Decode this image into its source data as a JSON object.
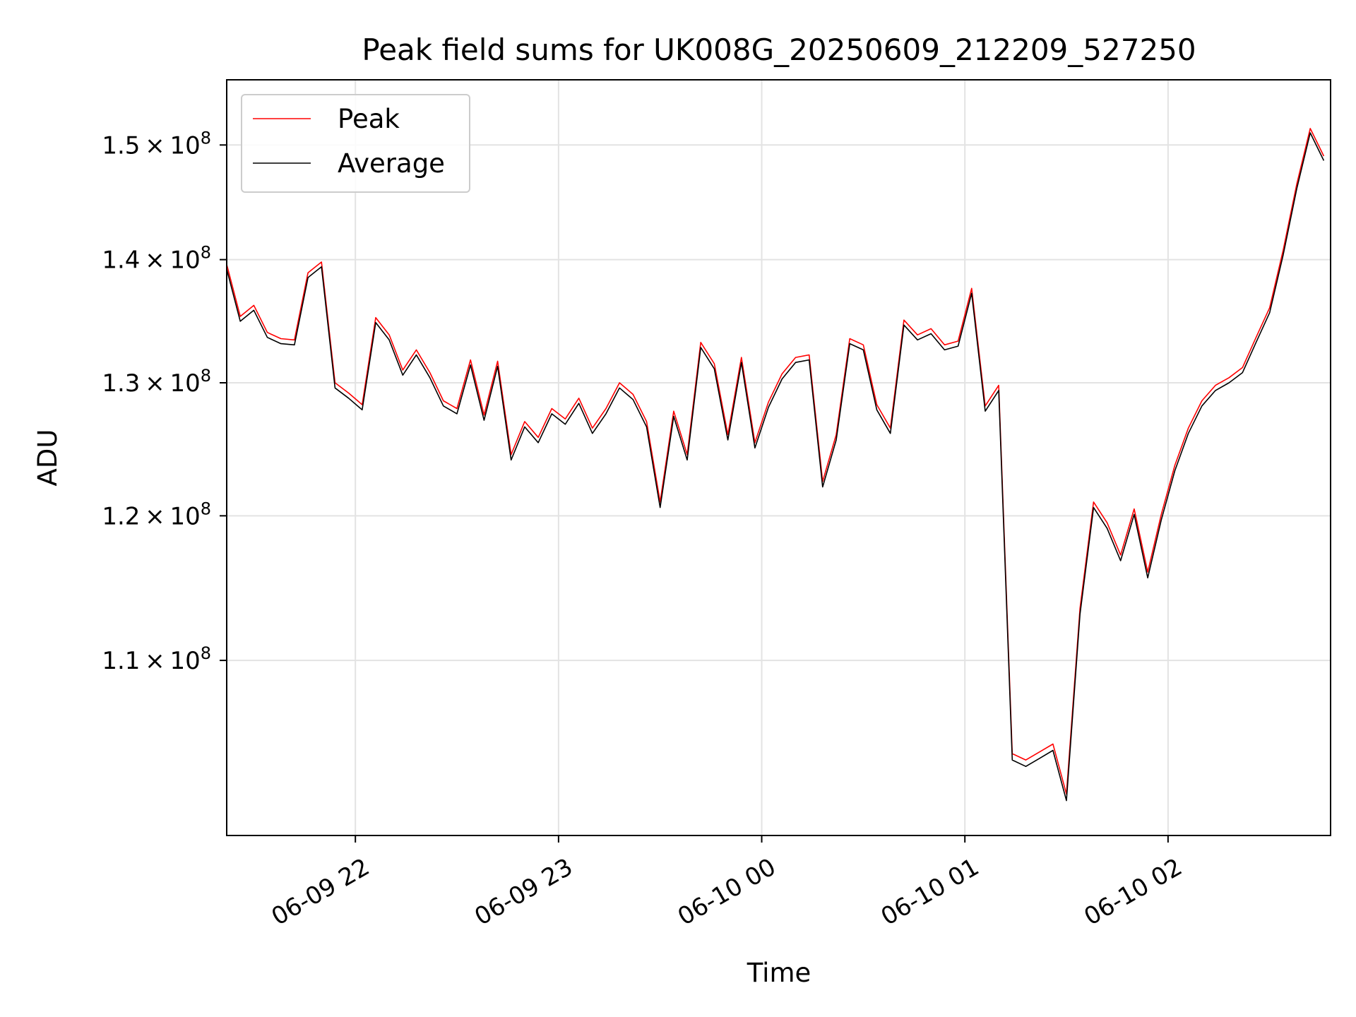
{
  "chart_data": {
    "type": "line",
    "title": "Peak field sums for UK008G_20250609_212209_527250",
    "xlabel": "Time",
    "ylabel": "ADU",
    "yscale": "log",
    "ylim": [
      99000000,
      156000000
    ],
    "xlim": [
      "2025-06-09 21:22",
      "2025-06-10 02:48"
    ],
    "grid": true,
    "legend_position": "upper left",
    "x_ticks": [
      {
        "x": "2025-06-09 22:00",
        "label": "06-09 22"
      },
      {
        "x": "2025-06-09 23:00",
        "label": "06-09 23"
      },
      {
        "x": "2025-06-10 00:00",
        "label": "06-10 00"
      },
      {
        "x": "2025-06-10 01:00",
        "label": "06-10 01"
      },
      {
        "x": "2025-06-10 02:00",
        "label": "06-10 02"
      }
    ],
    "y_ticks": [
      {
        "value": 110000000,
        "mantissa": "1.1",
        "exponent": "8"
      },
      {
        "value": 120000000,
        "mantissa": "1.2",
        "exponent": "8"
      },
      {
        "value": 130000000,
        "mantissa": "1.3",
        "exponent": "8"
      },
      {
        "value": 140000000,
        "mantissa": "1.4",
        "exponent": "8"
      },
      {
        "value": 150000000,
        "mantissa": "1.5",
        "exponent": "8"
      }
    ],
    "times": [
      "2025-06-09 21:22",
      "2025-06-09 21:26",
      "2025-06-09 21:30",
      "2025-06-09 21:34",
      "2025-06-09 21:38",
      "2025-06-09 21:42",
      "2025-06-09 21:46",
      "2025-06-09 21:50",
      "2025-06-09 21:54",
      "2025-06-09 21:58",
      "2025-06-09 22:02",
      "2025-06-09 22:06",
      "2025-06-09 22:10",
      "2025-06-09 22:14",
      "2025-06-09 22:18",
      "2025-06-09 22:22",
      "2025-06-09 22:26",
      "2025-06-09 22:30",
      "2025-06-09 22:34",
      "2025-06-09 22:38",
      "2025-06-09 22:42",
      "2025-06-09 22:46",
      "2025-06-09 22:50",
      "2025-06-09 22:54",
      "2025-06-09 22:58",
      "2025-06-09 23:02",
      "2025-06-09 23:06",
      "2025-06-09 23:10",
      "2025-06-09 23:14",
      "2025-06-09 23:18",
      "2025-06-09 23:22",
      "2025-06-09 23:26",
      "2025-06-09 23:30",
      "2025-06-09 23:34",
      "2025-06-09 23:38",
      "2025-06-09 23:42",
      "2025-06-09 23:46",
      "2025-06-09 23:50",
      "2025-06-09 23:54",
      "2025-06-09 23:58",
      "2025-06-10 00:02",
      "2025-06-10 00:06",
      "2025-06-10 00:10",
      "2025-06-10 00:14",
      "2025-06-10 00:18",
      "2025-06-10 00:22",
      "2025-06-10 00:26",
      "2025-06-10 00:30",
      "2025-06-10 00:34",
      "2025-06-10 00:38",
      "2025-06-10 00:42",
      "2025-06-10 00:46",
      "2025-06-10 00:50",
      "2025-06-10 00:54",
      "2025-06-10 00:58",
      "2025-06-10 01:02",
      "2025-06-10 01:06",
      "2025-06-10 01:10",
      "2025-06-10 01:14",
      "2025-06-10 01:18",
      "2025-06-10 01:22",
      "2025-06-10 01:26",
      "2025-06-10 01:30",
      "2025-06-10 01:34",
      "2025-06-10 01:38",
      "2025-06-10 01:42",
      "2025-06-10 01:46",
      "2025-06-10 01:50",
      "2025-06-10 01:54",
      "2025-06-10 01:58",
      "2025-06-10 02:02",
      "2025-06-10 02:06",
      "2025-06-10 02:10",
      "2025-06-10 02:14",
      "2025-06-10 02:18",
      "2025-06-10 02:22",
      "2025-06-10 02:26",
      "2025-06-10 02:30",
      "2025-06-10 02:34",
      "2025-06-10 02:38",
      "2025-06-10 02:42",
      "2025-06-10 02:46"
    ],
    "series": [
      {
        "name": "Peak",
        "color": "#ff0000",
        "values": [
          139.6,
          135.3,
          136.2,
          134.0,
          133.5,
          133.4,
          138.9,
          139.8,
          130.0,
          129.2,
          128.3,
          135.2,
          133.8,
          131.0,
          132.6,
          130.8,
          128.6,
          128.0,
          131.8,
          127.5,
          131.7,
          124.5,
          127.0,
          125.8,
          128.0,
          127.2,
          128.8,
          126.5,
          128.0,
          130.0,
          129.1,
          127.0,
          121.0,
          127.8,
          124.5,
          133.2,
          131.5,
          126.0,
          132.0,
          125.4,
          128.5,
          130.7,
          132.0,
          132.2,
          122.5,
          126.0,
          133.5,
          133.0,
          128.3,
          126.5,
          135.0,
          133.8,
          134.3,
          133.0,
          133.3,
          137.6,
          128.2,
          129.8,
          104.0,
          103.6,
          104.1,
          104.6,
          101.5,
          113.5,
          121.0,
          119.5,
          117.2,
          120.5,
          116.0,
          120.1,
          123.7,
          126.5,
          128.6,
          129.8,
          130.4,
          131.2,
          133.6,
          136.0,
          140.8,
          146.5,
          151.5,
          149.0
        ]
      },
      {
        "name": "Average",
        "color": "#000000",
        "values": [
          139.2,
          134.9,
          135.8,
          133.6,
          133.1,
          133.0,
          138.5,
          139.4,
          129.6,
          128.8,
          127.9,
          134.8,
          133.4,
          130.6,
          132.2,
          130.4,
          128.2,
          127.6,
          131.4,
          127.1,
          131.3,
          124.1,
          126.6,
          125.4,
          127.6,
          126.8,
          128.4,
          126.1,
          127.6,
          129.6,
          128.7,
          126.6,
          120.6,
          127.4,
          124.1,
          132.8,
          131.1,
          125.6,
          131.6,
          125.0,
          128.1,
          130.3,
          131.6,
          131.8,
          122.1,
          125.6,
          133.1,
          132.6,
          127.9,
          126.1,
          134.6,
          133.4,
          133.9,
          132.6,
          132.9,
          137.2,
          127.8,
          129.4,
          103.6,
          103.2,
          103.7,
          104.2,
          101.1,
          113.1,
          120.6,
          119.1,
          116.8,
          120.1,
          115.6,
          119.7,
          123.3,
          126.1,
          128.2,
          129.4,
          130.0,
          130.8,
          133.2,
          135.6,
          140.4,
          146.1,
          151.1,
          148.6
        ]
      }
    ],
    "value_unit_multiplier": 1000000
  }
}
